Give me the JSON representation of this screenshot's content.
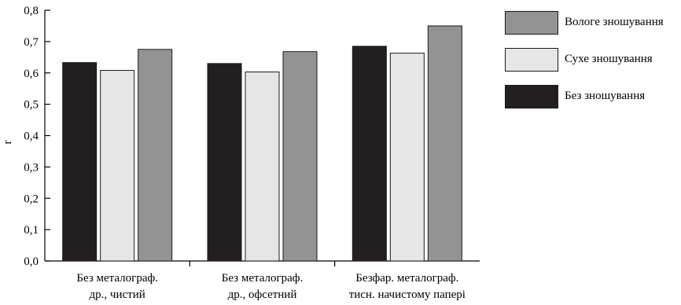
{
  "chart_data": {
    "type": "bar",
    "title": "",
    "xlabel": "",
    "ylabel": "r",
    "ylim": [
      0,
      0.8
    ],
    "ytick_labels": [
      "0,0",
      "0,1",
      "0,2",
      "0,3",
      "0,4",
      "0,5",
      "0,6",
      "0,7",
      "0,8"
    ],
    "categories": [
      [
        "Без металограф.",
        "др., чистий"
      ],
      [
        "Без металограф.",
        "др., офсетний"
      ],
      [
        "Безфар. металограф.",
        "тисн. начистому папері"
      ]
    ],
    "series": [
      {
        "name": "Без зношування",
        "color": "#231f20",
        "values": [
          0.633,
          0.63,
          0.685
        ]
      },
      {
        "name": "Сухе зношування",
        "color": "#e6e6e6",
        "values": [
          0.608,
          0.603,
          0.663
        ]
      },
      {
        "name": "Вологе зношування",
        "color": "#939393",
        "values": [
          0.675,
          0.668,
          0.75
        ]
      }
    ],
    "legend_order": [
      2,
      1,
      0
    ],
    "legend_position": "top-right",
    "grid": false
  }
}
